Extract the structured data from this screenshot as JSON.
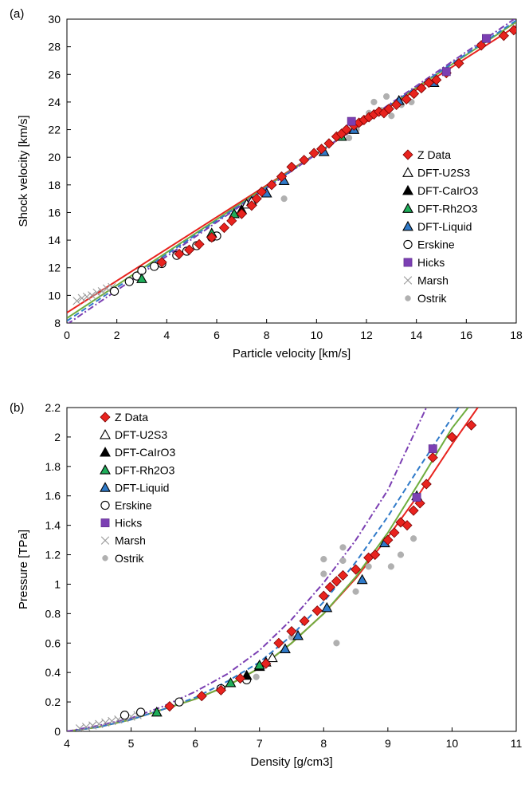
{
  "chart_data": [
    {
      "panel_label": "(a)",
      "type": "scatter",
      "xlabel": "Particle velocity [km/s]",
      "ylabel": "Shock velocity [km/s]",
      "xlim": [
        0,
        18
      ],
      "ylim": [
        8,
        30
      ],
      "xticks": [
        "0",
        "2",
        "4",
        "6",
        "8",
        "10",
        "12",
        "14",
        "16",
        "18"
      ],
      "yticks": [
        "8",
        "10",
        "12",
        "14",
        "16",
        "18",
        "20",
        "22",
        "24",
        "26",
        "28",
        "30"
      ],
      "grid": false,
      "legend_position": "right",
      "series": [
        {
          "name": "Z Data",
          "marker": "diamond",
          "color": "#e8231e",
          "edge": "#7a0000",
          "points": [
            [
              3.8,
              12.4
            ],
            [
              4.5,
              13.0
            ],
            [
              4.9,
              13.3
            ],
            [
              5.3,
              13.7
            ],
            [
              5.8,
              14.2
            ],
            [
              6.3,
              14.9
            ],
            [
              6.6,
              15.4
            ],
            [
              7.0,
              15.9
            ],
            [
              7.4,
              16.5
            ],
            [
              7.6,
              17.0
            ],
            [
              7.8,
              17.5
            ],
            [
              8.2,
              18.0
            ],
            [
              8.6,
              18.6
            ],
            [
              9.0,
              19.3
            ],
            [
              9.5,
              19.8
            ],
            [
              9.9,
              20.3
            ],
            [
              10.2,
              20.6
            ],
            [
              10.5,
              21.0
            ],
            [
              10.8,
              21.5
            ],
            [
              11.0,
              21.7
            ],
            [
              11.2,
              22.0
            ],
            [
              11.5,
              22.3
            ],
            [
              11.7,
              22.5
            ],
            [
              11.9,
              22.7
            ],
            [
              12.1,
              22.9
            ],
            [
              12.3,
              23.1
            ],
            [
              12.5,
              23.3
            ],
            [
              12.7,
              23.2
            ],
            [
              12.9,
              23.5
            ],
            [
              13.2,
              23.8
            ],
            [
              13.6,
              24.2
            ],
            [
              13.9,
              24.6
            ],
            [
              14.2,
              25.0
            ],
            [
              14.5,
              25.4
            ],
            [
              14.8,
              25.6
            ],
            [
              15.2,
              26.1
            ],
            [
              15.7,
              26.8
            ],
            [
              16.6,
              28.1
            ],
            [
              17.5,
              28.8
            ],
            [
              17.9,
              29.2
            ]
          ]
        },
        {
          "name": "DFT-U2S3",
          "marker": "triangle-open",
          "color": "#ffffff",
          "edge": "#000000",
          "points": [
            [
              7.2,
              16.6
            ],
            [
              7.4,
              16.8
            ]
          ]
        },
        {
          "name": "DFT-CaIrO3",
          "marker": "triangle",
          "color": "#000000",
          "edge": "#000000",
          "points": [
            [
              7.0,
              16.2
            ]
          ]
        },
        {
          "name": "DFT-Rh2O3",
          "marker": "triangle",
          "color": "#1fae5a",
          "edge": "#000000",
          "points": [
            [
              3.0,
              11.2
            ],
            [
              5.8,
              14.5
            ],
            [
              6.7,
              15.9
            ],
            [
              11.0,
              21.5
            ]
          ]
        },
        {
          "name": "DFT-Liquid",
          "marker": "triangle",
          "color": "#2f7ac9",
          "edge": "#000000",
          "points": [
            [
              8.0,
              17.4
            ],
            [
              8.7,
              18.3
            ],
            [
              10.3,
              20.4
            ],
            [
              11.5,
              22.0
            ],
            [
              13.3,
              24.1
            ],
            [
              14.7,
              25.4
            ]
          ]
        },
        {
          "name": "Erskine",
          "marker": "circle-open",
          "color": "#ffffff",
          "edge": "#000000",
          "points": [
            [
              1.9,
              10.3
            ],
            [
              2.5,
              11.0
            ],
            [
              2.8,
              11.4
            ],
            [
              3.0,
              11.8
            ],
            [
              3.5,
              12.1
            ],
            [
              3.8,
              12.3
            ],
            [
              4.4,
              12.9
            ],
            [
              4.8,
              13.2
            ],
            [
              5.2,
              13.6
            ],
            [
              5.8,
              14.2
            ],
            [
              6.0,
              14.3
            ]
          ]
        },
        {
          "name": "Hicks",
          "marker": "square",
          "color": "#7b3fb3",
          "edge": "#5a2a86",
          "points": [
            [
              11.4,
              22.6
            ],
            [
              15.2,
              26.2
            ],
            [
              16.8,
              28.6
            ]
          ]
        },
        {
          "name": "Marsh",
          "marker": "x",
          "color": "#9a9a9a",
          "edge": "#9a9a9a",
          "points": [
            [
              0.4,
              9.6
            ],
            [
              0.6,
              9.8
            ],
            [
              0.8,
              9.9
            ],
            [
              1.0,
              10.0
            ],
            [
              1.2,
              10.2
            ],
            [
              1.4,
              10.3
            ],
            [
              1.6,
              10.5
            ],
            [
              1.8,
              10.6
            ]
          ]
        },
        {
          "name": "Ostrik",
          "marker": "dot",
          "color": "#b0b0b0",
          "edge": "#b0b0b0",
          "points": [
            [
              8.7,
              17.0
            ],
            [
              11.3,
              21.4
            ],
            [
              11.6,
              22.0
            ],
            [
              12.1,
              23.2
            ],
            [
              12.3,
              24.0
            ],
            [
              12.6,
              23.4
            ],
            [
              12.8,
              24.4
            ],
            [
              13.0,
              23.0
            ],
            [
              13.4,
              23.8
            ],
            [
              13.8,
              24.0
            ]
          ]
        }
      ],
      "fits": [
        {
          "color": "#e8231e",
          "dash": "solid",
          "x": [
            0,
            18
          ],
          "y": [
            8.75,
            29.5
          ]
        },
        {
          "color": "#6fae3f",
          "dash": "solid",
          "x": [
            0,
            18
          ],
          "y": [
            8.35,
            29.8
          ]
        },
        {
          "color": "#2f7ac9",
          "dash": "dashed",
          "x": [
            0,
            18
          ],
          "y": [
            8.15,
            29.9
          ]
        },
        {
          "color": "#7b3fb3",
          "dash": "dashdot",
          "x": [
            0,
            18
          ],
          "y": [
            7.9,
            30.1
          ]
        }
      ]
    },
    {
      "panel_label": "(b)",
      "type": "scatter",
      "xlabel": "Density [g/cm3]",
      "ylabel": "Pressure [TPa]",
      "xlim": [
        4,
        11
      ],
      "ylim": [
        0,
        2.2
      ],
      "xticks": [
        "4",
        "5",
        "6",
        "7",
        "8",
        "9",
        "10",
        "11"
      ],
      "yticks": [
        "0",
        "0.2",
        "0.4",
        "0.6",
        "0.8",
        "1",
        "1.2",
        "1.4",
        "1.6",
        "1.8",
        "2",
        "2.2"
      ],
      "grid": false,
      "legend_position": "top-left",
      "series": [
        {
          "name": "Z Data",
          "marker": "diamond",
          "color": "#e8231e",
          "edge": "#7a0000",
          "points": [
            [
              5.6,
              0.17
            ],
            [
              6.1,
              0.24
            ],
            [
              6.4,
              0.28
            ],
            [
              6.7,
              0.36
            ],
            [
              7.1,
              0.46
            ],
            [
              7.3,
              0.6
            ],
            [
              7.5,
              0.68
            ],
            [
              7.7,
              0.75
            ],
            [
              7.9,
              0.82
            ],
            [
              8.0,
              0.92
            ],
            [
              8.1,
              0.98
            ],
            [
              8.2,
              1.02
            ],
            [
              8.3,
              1.06
            ],
            [
              8.5,
              1.1
            ],
            [
              8.7,
              1.18
            ],
            [
              8.8,
              1.2
            ],
            [
              9.0,
              1.3
            ],
            [
              9.1,
              1.35
            ],
            [
              9.2,
              1.42
            ],
            [
              9.3,
              1.4
            ],
            [
              9.4,
              1.5
            ],
            [
              9.5,
              1.55
            ],
            [
              9.6,
              1.68
            ],
            [
              9.7,
              1.86
            ],
            [
              10.0,
              2.0
            ],
            [
              10.3,
              2.08
            ]
          ]
        },
        {
          "name": "DFT-U2S3",
          "marker": "triangle-open",
          "color": "#ffffff",
          "edge": "#000000",
          "points": [
            [
              7.1,
              0.47
            ],
            [
              7.2,
              0.5
            ]
          ]
        },
        {
          "name": "DFT-CaIrO3",
          "marker": "triangle",
          "color": "#000000",
          "edge": "#000000",
          "points": [
            [
              6.8,
              0.38
            ],
            [
              7.0,
              0.44
            ]
          ]
        },
        {
          "name": "DFT-Rh2O3",
          "marker": "triangle",
          "color": "#1fae5a",
          "edge": "#000000",
          "points": [
            [
              5.4,
              0.13
            ],
            [
              6.55,
              0.33
            ],
            [
              7.0,
              0.45
            ]
          ]
        },
        {
          "name": "DFT-Liquid",
          "marker": "triangle",
          "color": "#2f7ac9",
          "edge": "#000000",
          "points": [
            [
              7.4,
              0.56
            ],
            [
              7.6,
              0.65
            ],
            [
              8.05,
              0.84
            ],
            [
              8.6,
              1.03
            ],
            [
              8.95,
              1.28
            ],
            [
              9.45,
              1.6
            ]
          ]
        },
        {
          "name": "Erskine",
          "marker": "circle-open",
          "color": "#ffffff",
          "edge": "#000000",
          "points": [
            [
              4.9,
              0.11
            ],
            [
              5.15,
              0.13
            ],
            [
              5.75,
              0.2
            ],
            [
              6.4,
              0.29
            ],
            [
              6.8,
              0.35
            ]
          ]
        },
        {
          "name": "Hicks",
          "marker": "square",
          "color": "#7b3fb3",
          "edge": "#5a2a86",
          "points": [
            [
              9.45,
              1.59
            ],
            [
              9.7,
              1.92
            ]
          ]
        },
        {
          "name": "Marsh",
          "marker": "x",
          "color": "#9a9a9a",
          "edge": "#9a9a9a",
          "points": [
            [
              4.2,
              0.02
            ],
            [
              4.3,
              0.03
            ],
            [
              4.4,
              0.04
            ],
            [
              4.5,
              0.05
            ],
            [
              4.6,
              0.06
            ],
            [
              4.7,
              0.07
            ],
            [
              4.8,
              0.08
            ],
            [
              4.9,
              0.09
            ],
            [
              5.0,
              0.1
            ],
            [
              5.1,
              0.11
            ]
          ]
        },
        {
          "name": "Ostrik",
          "marker": "dot",
          "color": "#b0b0b0",
          "edge": "#b0b0b0",
          "points": [
            [
              6.95,
              0.37
            ],
            [
              7.5,
              0.64
            ],
            [
              8.0,
              1.07
            ],
            [
              8.0,
              1.17
            ],
            [
              8.2,
              0.6
            ],
            [
              8.3,
              1.16
            ],
            [
              8.3,
              1.25
            ],
            [
              8.5,
              0.95
            ],
            [
              8.7,
              1.12
            ],
            [
              9.05,
              1.12
            ],
            [
              9.2,
              1.2
            ],
            [
              9.4,
              1.31
            ]
          ]
        }
      ],
      "fits": [
        {
          "color": "#e8231e",
          "dash": "solid",
          "x": [
            4.0,
            4.5,
            5.0,
            5.5,
            6.0,
            6.5,
            7.0,
            7.5,
            8.0,
            8.5,
            9.0,
            9.5,
            10.0,
            10.4
          ],
          "y": [
            0.0,
            0.03,
            0.08,
            0.15,
            0.22,
            0.31,
            0.43,
            0.6,
            0.8,
            1.04,
            1.32,
            1.62,
            1.95,
            2.2
          ]
        },
        {
          "color": "#6fae3f",
          "dash": "solid",
          "x": [
            4.0,
            4.5,
            5.0,
            5.5,
            6.0,
            6.5,
            7.0,
            7.5,
            8.0,
            8.5,
            9.0,
            9.5,
            10.0,
            10.25
          ],
          "y": [
            0.0,
            0.03,
            0.08,
            0.15,
            0.22,
            0.31,
            0.43,
            0.6,
            0.8,
            1.05,
            1.35,
            1.7,
            2.06,
            2.2
          ]
        },
        {
          "color": "#2f7ac9",
          "dash": "dashed",
          "x": [
            4.0,
            4.5,
            5.0,
            5.5,
            6.0,
            6.5,
            7.0,
            7.5,
            8.0,
            8.5,
            9.0,
            9.5,
            10.1
          ],
          "y": [
            0.0,
            0.03,
            0.08,
            0.15,
            0.23,
            0.34,
            0.47,
            0.65,
            0.88,
            1.15,
            1.46,
            1.8,
            2.2
          ]
        },
        {
          "color": "#7b3fb3",
          "dash": "dashdot",
          "x": [
            4.0,
            4.5,
            5.0,
            5.5,
            6.0,
            6.5,
            7.0,
            7.5,
            8.0,
            8.5,
            9.0,
            9.6
          ],
          "y": [
            0.0,
            0.04,
            0.09,
            0.17,
            0.27,
            0.39,
            0.55,
            0.76,
            1.01,
            1.3,
            1.64,
            2.2
          ]
        }
      ]
    }
  ]
}
